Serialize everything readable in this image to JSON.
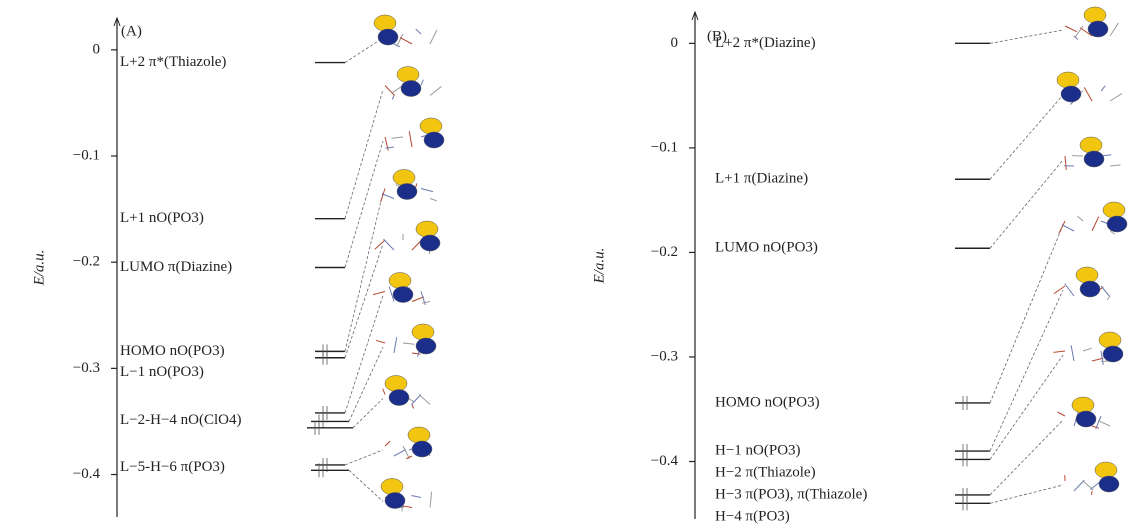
{
  "chart_data": [
    {
      "type": "energy-level",
      "panel": "(A)",
      "ylabel": "E/a.u.",
      "ylim": [
        -0.44,
        0.03
      ],
      "yticks": [
        0,
        {
          "value": -0.1,
          "label": "−0.1"
        },
        {
          "value": -0.2,
          "label": "−0.2"
        },
        {
          "value": -0.3,
          "label": "−0.3"
        },
        {
          "value": -0.4,
          "label": "−0.4"
        }
      ],
      "levels": [
        {
          "label": "L+2 π*(Thiazole)",
          "energies": [
            -0.012
          ],
          "occupied": false
        },
        {
          "label": "L+1 nO(PO3)",
          "energies": [
            -0.159
          ],
          "occupied": false
        },
        {
          "label": "LUMO π(Diazine)",
          "energies": [
            -0.205
          ],
          "occupied": false
        },
        {
          "label": "HOMO nO(PO3)",
          "energies": [
            -0.284
          ],
          "occupied": true
        },
        {
          "label": "L−1 nO(PO3)",
          "energies": [
            -0.29
          ],
          "occupied": true
        },
        {
          "label": "L−2-H−4 nO(ClO4)",
          "energies": [
            -0.342,
            -0.35,
            -0.356
          ],
          "occupied": true
        },
        {
          "label": "L−5-H−6 π(PO3)",
          "energies": [
            -0.391,
            -0.396
          ],
          "occupied": true
        }
      ]
    },
    {
      "type": "energy-level",
      "panel": "(B)",
      "ylabel": "E/a.u.",
      "ylim": [
        -0.455,
        0.03
      ],
      "yticks": [
        0,
        {
          "value": -0.1,
          "label": "−0.1"
        },
        {
          "value": -0.2,
          "label": "−0.2"
        },
        {
          "value": -0.3,
          "label": "−0.3"
        },
        {
          "value": -0.4,
          "label": "−0.4"
        }
      ],
      "levels": [
        {
          "label": "L+2 π*(Diazine)",
          "energies": [
            0
          ],
          "occupied": false
        },
        {
          "label": "L+1 π(Diazine)",
          "energies": [
            -0.13
          ],
          "occupied": false
        },
        {
          "label": "LUMO nO(PO3)",
          "energies": [
            -0.196
          ],
          "occupied": false
        },
        {
          "label": "HOMO nO(PO3)",
          "energies": [
            -0.344
          ],
          "occupied": true
        },
        {
          "label": "H−1 nO(PO3)",
          "energies": [
            -0.39
          ],
          "occupied": true
        },
        {
          "label": "H−2 π(Thiazole)",
          "energies": [
            -0.398
          ],
          "occupied": true
        },
        {
          "label": "H−3 π(PO3), π(Thiazole)",
          "energies": [
            -0.432
          ],
          "occupied": true
        },
        {
          "label": "H−4 π(PO3)",
          "energies": [
            -0.44
          ],
          "occupied": true
        }
      ]
    }
  ]
}
